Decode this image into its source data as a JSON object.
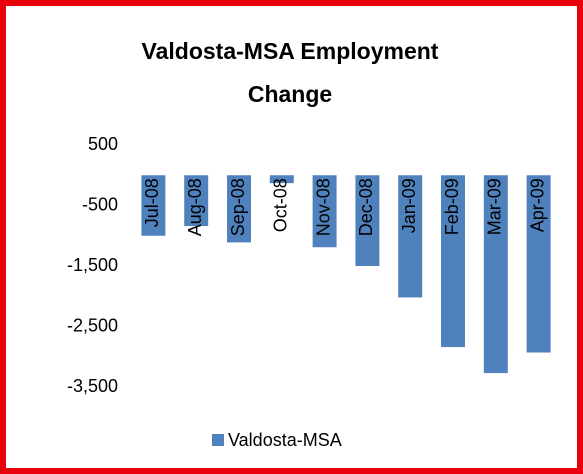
{
  "chart_data": {
    "type": "bar",
    "title": "Valdosta-MSA Employment Change",
    "categories": [
      "Jul-08",
      "Aug-08",
      "Sep-08",
      "Oct-08",
      "Nov-08",
      "Dec-08",
      "Jan-09",
      "Feb-09",
      "Mar-09",
      "Apr-09"
    ],
    "series": [
      {
        "name": "Valdosta-MSA",
        "color": "#4f81bd",
        "values": [
          -1000,
          -840,
          -1110,
          -130,
          -1190,
          -1500,
          -2020,
          -2840,
          -3270,
          -2930
        ]
      }
    ],
    "ylim": [
      -3500,
      500
    ],
    "yticks": [
      500,
      -500,
      {
        "value": -1500,
        "label": "-1,500"
      },
      {
        "value": -2500,
        "label": "-2,500"
      },
      {
        "value": -3500,
        "label": "-3,500"
      }
    ],
    "grid": false,
    "legend": "bottom"
  }
}
